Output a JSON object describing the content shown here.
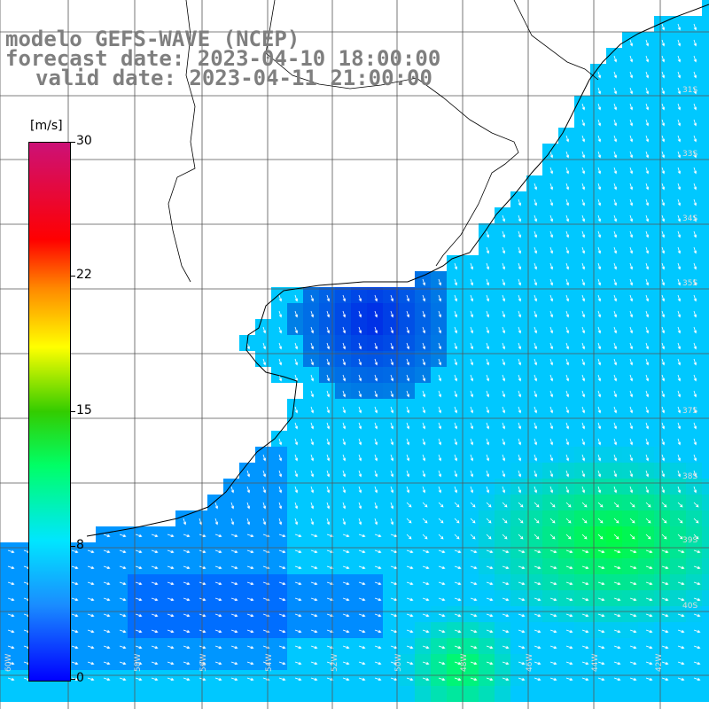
{
  "header": {
    "model": "modelo GEFS-WAVE (NCEP)",
    "forecast_date": "forecast date: 2023-04-10 18:00:00",
    "valid_date": "valid date: 2023-04-11 21:00:00"
  },
  "colorbar": {
    "unit": "[m/s]",
    "ticks": [
      "30",
      "22",
      "15",
      "8",
      "0"
    ],
    "colors": [
      "#0000ff",
      "#1a8cff",
      "#00e6ff",
      "#00ff66",
      "#33cc00",
      "#ffff00",
      "#ff8800",
      "#ff0000",
      "#cc1177"
    ]
  },
  "map": {
    "lat_labels": [
      "31S",
      "33S",
      "34S",
      "35S",
      "37S",
      "38S",
      "39S",
      "40S"
    ],
    "lon_labels": [
      "60W",
      "58W",
      "56W",
      "54W",
      "52W",
      "50W",
      "48W",
      "46W",
      "44W",
      "42W"
    ]
  }
}
